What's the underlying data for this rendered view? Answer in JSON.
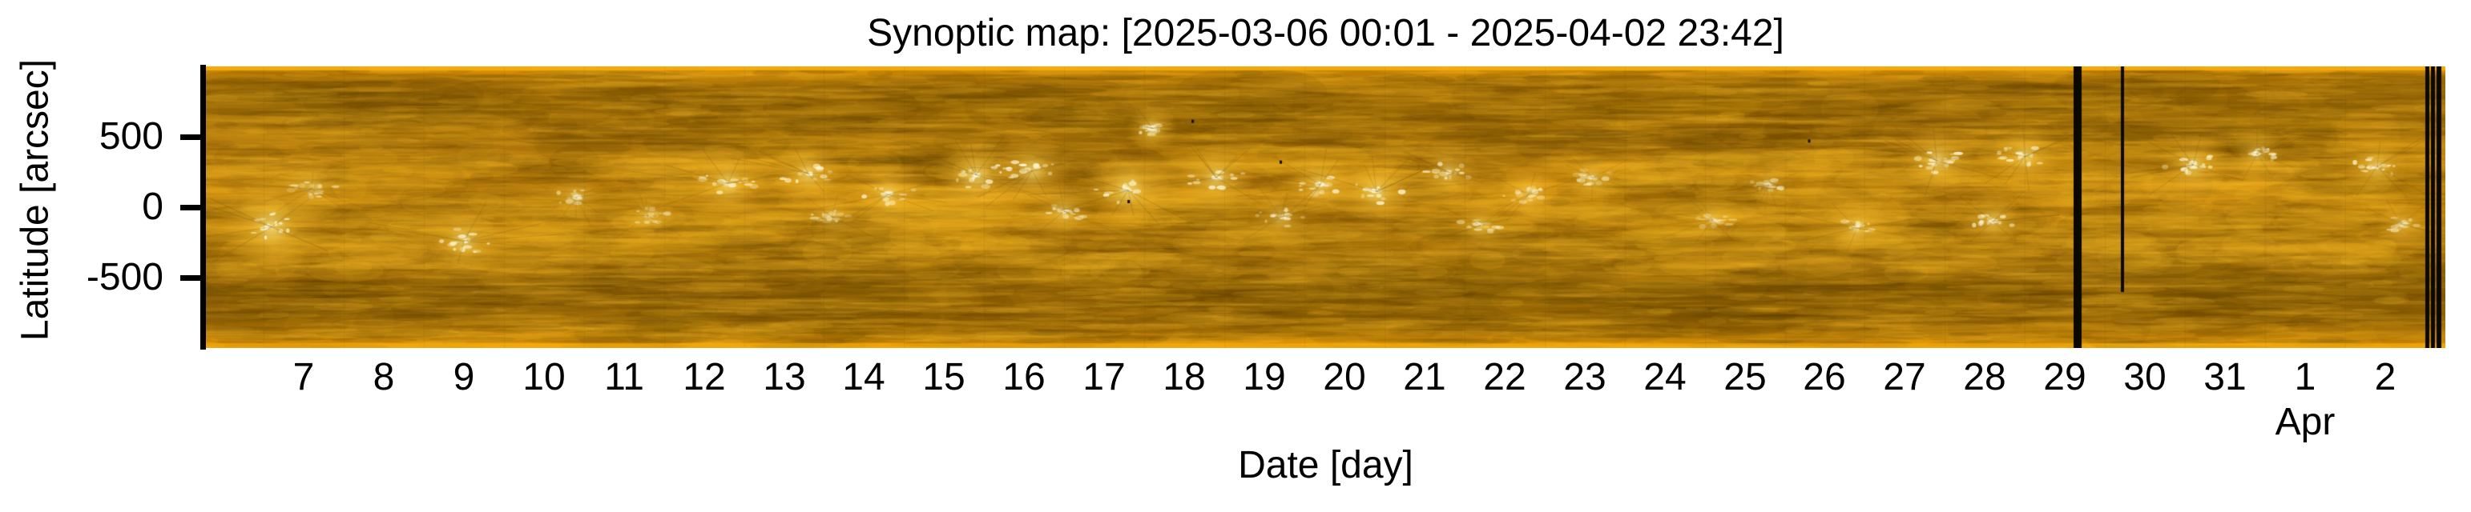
{
  "chart_data": {
    "type": "heatmap",
    "title": "Synoptic map: [2025-03-06 00:01 - 2025-04-02 23:42]",
    "time_start": "2025-03-06 00:01",
    "time_end": "2025-04-02 23:42",
    "xlabel": "Date [day]",
    "ylabel": "Latitude [arcsec]",
    "x_tick_labels": [
      "7",
      "8",
      "9",
      "10",
      "11",
      "12",
      "13",
      "14",
      "15",
      "16",
      "17",
      "18",
      "19",
      "20",
      "21",
      "22",
      "23",
      "24",
      "25",
      "26",
      "27",
      "28",
      "29",
      "30",
      "31",
      "1",
      "2"
    ],
    "x_tick_days": [
      7,
      8,
      9,
      10,
      11,
      12,
      13,
      14,
      15,
      16,
      17,
      18,
      19,
      20,
      21,
      22,
      23,
      24,
      25,
      26,
      27,
      28,
      29,
      30,
      31,
      32,
      33
    ],
    "x_month_label": "Apr",
    "x_month_under_label_index": 25,
    "y_tick_labels": [
      "500",
      "0",
      "-500"
    ],
    "y_tick_values": [
      500,
      0,
      -500
    ],
    "ylim_arcsec": [
      -1000,
      1000
    ],
    "xlim_days_of_march": [
      5.8,
      33.75
    ],
    "grid": false,
    "legend": "none",
    "image": {
      "kind": "solar EUV intensity synoptic map, gold colormap",
      "colormap_stops": [
        [
          0.0,
          "#efa407"
        ],
        [
          0.02,
          "#d18d08"
        ],
        [
          0.07,
          "#aa7408"
        ],
        [
          0.14,
          "#9e6d07"
        ],
        [
          0.22,
          "#ad770a"
        ],
        [
          0.32,
          "#bc800c"
        ],
        [
          0.44,
          "#c8860c"
        ],
        [
          0.56,
          "#b67c0a"
        ],
        [
          0.68,
          "#a06d08"
        ],
        [
          0.8,
          "#8d6106"
        ],
        [
          0.9,
          "#a06d07"
        ],
        [
          0.965,
          "#ce8b08"
        ],
        [
          1.0,
          "#ec9f07"
        ]
      ],
      "gap_hex": "#0b0802",
      "bright_core_hex": "#fffadc",
      "dark_lane_hex": "#7d5704",
      "active_regions": [
        {
          "day": 6.6,
          "lat": -140,
          "r": 26,
          "i": 1.0
        },
        {
          "day": 7.1,
          "lat": 130,
          "r": 16,
          "i": 0.6
        },
        {
          "day": 9.0,
          "lat": -240,
          "r": 20,
          "i": 0.85
        },
        {
          "day": 10.4,
          "lat": 70,
          "r": 15,
          "i": 0.55
        },
        {
          "day": 11.3,
          "lat": -60,
          "r": 14,
          "i": 0.5
        },
        {
          "day": 12.3,
          "lat": 170,
          "r": 20,
          "i": 0.8
        },
        {
          "day": 13.3,
          "lat": 240,
          "r": 18,
          "i": 0.85
        },
        {
          "day": 13.6,
          "lat": -70,
          "r": 14,
          "i": 0.55
        },
        {
          "day": 14.3,
          "lat": 90,
          "r": 18,
          "i": 0.75
        },
        {
          "day": 15.4,
          "lat": 230,
          "r": 22,
          "i": 0.95
        },
        {
          "day": 16.1,
          "lat": 260,
          "r": 20,
          "i": 0.9
        },
        {
          "day": 16.5,
          "lat": -30,
          "r": 16,
          "i": 0.7
        },
        {
          "day": 17.3,
          "lat": 120,
          "r": 22,
          "i": 0.95
        },
        {
          "day": 17.6,
          "lat": 560,
          "r": 13,
          "i": 0.85
        },
        {
          "day": 18.4,
          "lat": 210,
          "r": 20,
          "i": 0.85
        },
        {
          "day": 19.2,
          "lat": -70,
          "r": 16,
          "i": 0.65
        },
        {
          "day": 19.7,
          "lat": 160,
          "r": 18,
          "i": 0.8
        },
        {
          "day": 20.4,
          "lat": 110,
          "r": 20,
          "i": 0.85
        },
        {
          "day": 21.3,
          "lat": 250,
          "r": 16,
          "i": 0.75
        },
        {
          "day": 21.7,
          "lat": -130,
          "r": 14,
          "i": 0.6
        },
        {
          "day": 22.3,
          "lat": 90,
          "r": 16,
          "i": 0.7
        },
        {
          "day": 23.1,
          "lat": 210,
          "r": 14,
          "i": 0.6
        },
        {
          "day": 24.6,
          "lat": -90,
          "r": 13,
          "i": 0.5
        },
        {
          "day": 25.3,
          "lat": 160,
          "r": 13,
          "i": 0.55
        },
        {
          "day": 26.4,
          "lat": -150,
          "r": 16,
          "i": 0.65
        },
        {
          "day": 27.4,
          "lat": 330,
          "r": 20,
          "i": 0.9
        },
        {
          "day": 28.1,
          "lat": -100,
          "r": 16,
          "i": 0.7
        },
        {
          "day": 28.5,
          "lat": 360,
          "r": 18,
          "i": 0.85
        },
        {
          "day": 30.6,
          "lat": 300,
          "r": 18,
          "i": 0.85
        },
        {
          "day": 31.4,
          "lat": 380,
          "r": 14,
          "i": 0.7
        },
        {
          "day": 32.9,
          "lat": 290,
          "r": 16,
          "i": 0.8
        },
        {
          "day": 33.2,
          "lat": -120,
          "r": 13,
          "i": 0.6
        }
      ],
      "data_gaps": [
        {
          "day": 29.16,
          "width_days": 0.1,
          "height_frac": 1.0
        },
        {
          "day": 29.72,
          "width_days": 0.04,
          "height_frac": 0.8
        },
        {
          "day": 33.53,
          "width_days": 0.05,
          "height_frac": 1.0
        },
        {
          "day": 33.6,
          "width_days": 0.05,
          "height_frac": 1.0
        },
        {
          "day": 33.67,
          "width_days": 0.06,
          "height_frac": 1.0
        }
      ],
      "defect_specks": [
        {
          "day": 18.1,
          "lat": 610
        },
        {
          "day": 19.2,
          "lat": 320
        },
        {
          "day": 17.3,
          "lat": 40
        },
        {
          "day": 25.8,
          "lat": 470
        }
      ]
    }
  }
}
